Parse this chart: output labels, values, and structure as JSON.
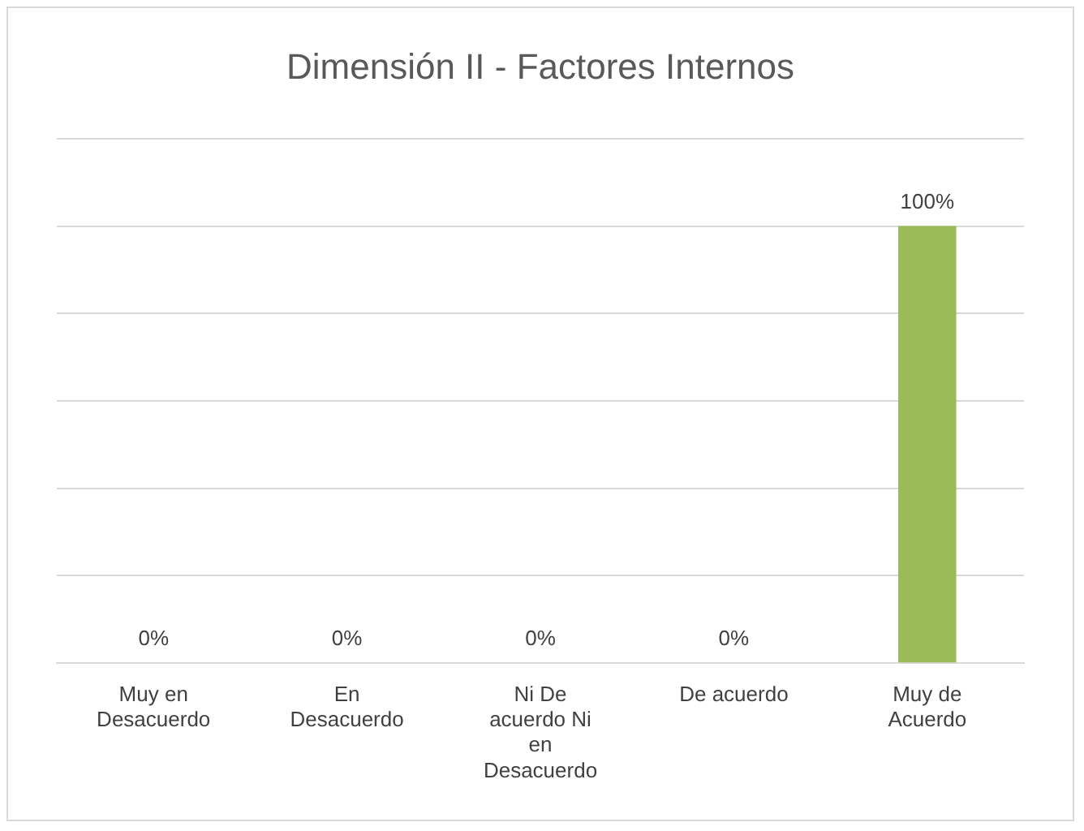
{
  "chart_data": {
    "type": "bar",
    "title": "Dimensión II - Factores Internos",
    "categories": [
      "Muy en Desacuerdo",
      "En Desacuerdo",
      "Ni De acuerdo Ni en Desacuerdo",
      "De acuerdo",
      "Muy de Acuerdo"
    ],
    "values": [
      0,
      0,
      0,
      0,
      100
    ],
    "value_labels": [
      "0%",
      "0%",
      "0%",
      "0%",
      "100%"
    ],
    "color": "#9bbb59",
    "ylim": [
      0,
      120
    ],
    "yticks": [
      {
        "value": 0,
        "label": null
      },
      {
        "value": 20,
        "label": null
      },
      {
        "value": 40,
        "label": null
      },
      {
        "value": 60,
        "label": null
      },
      {
        "value": 80,
        "label": null
      },
      {
        "value": 100,
        "label": null
      },
      {
        "value": 120,
        "label": null
      }
    ],
    "grid": "y",
    "tick_labels": "x",
    "legend": false
  }
}
